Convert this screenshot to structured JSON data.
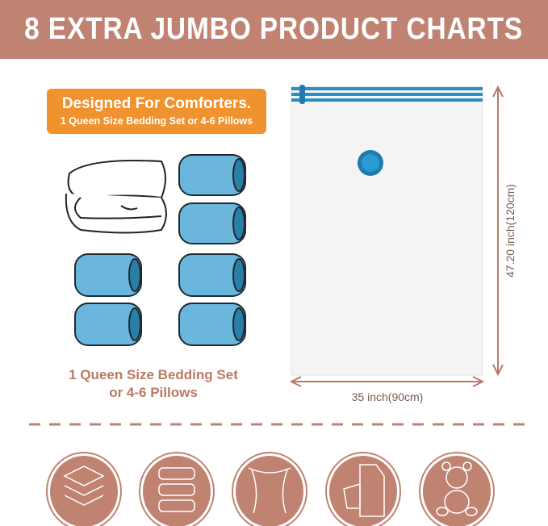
{
  "header": {
    "title": "8 EXTRA JUMBO PRODUCT CHARTS"
  },
  "badge": {
    "line1": "Designed For Comforters.",
    "line2": "1 Queen Size Bedding Set or 4-6 Pillows"
  },
  "caption": {
    "line1": "1 Queen Size Bedding Set",
    "line2": "or 4-6 Pillows"
  },
  "dimensions": {
    "height": "47.20 inch(120cm)",
    "width": "35 inch(90cm)"
  },
  "colors": {
    "brand": "#c08372",
    "badge": "#f0922e",
    "bag_zip": "#2a8fc4",
    "pillow": "#6bb6dc",
    "caption_text": "#b97a63"
  },
  "icons": [
    "towels-icon",
    "pillows-icon",
    "curtains-icon",
    "clothes-icon",
    "teddy-bear-icon"
  ]
}
